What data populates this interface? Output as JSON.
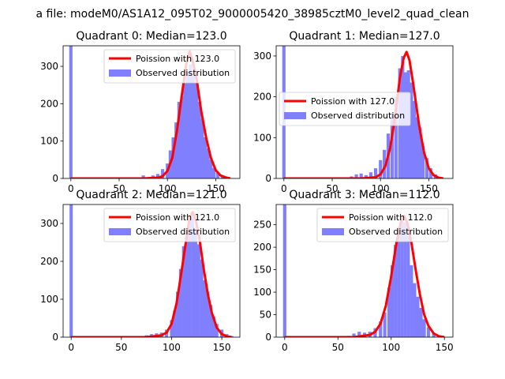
{
  "figure": {
    "suptitle": "a file: modeM0/AS1A12_095T02_9000005420_38985cztM0_level2_quad_clean"
  },
  "colors": {
    "observed": "#8080ff",
    "poisson": "#ff0000",
    "axes": "#000000",
    "background": "#ffffff"
  },
  "chart_data": [
    {
      "type": "bar",
      "title": "Quadrant 0: Median=123.0",
      "median": 123.0,
      "xlim": [
        -8,
        175
      ],
      "ylim": [
        0,
        355
      ],
      "xticks": [
        0,
        50,
        100,
        150
      ],
      "yticks": [
        0,
        100,
        200,
        300
      ],
      "legend_position": "upper right",
      "series": [
        {
          "name": "Poission with 123.0",
          "kind": "line",
          "x": [
            0,
            75,
            90,
            95,
            100,
            105,
            110,
            115,
            120,
            123,
            126,
            130,
            135,
            140,
            145,
            150,
            155,
            160,
            165
          ],
          "y": [
            0,
            0,
            2,
            6,
            20,
            55,
            130,
            225,
            315,
            340,
            315,
            270,
            180,
            110,
            55,
            22,
            8,
            3,
            0
          ]
        },
        {
          "name": "Observed distribution",
          "kind": "bars",
          "bin_width": 3.4,
          "x": [
            0,
            75,
            80,
            85,
            90,
            95,
            100,
            103,
            106,
            109,
            112,
            115,
            118,
            121,
            124,
            127,
            130,
            133,
            136,
            139,
            142,
            145,
            148,
            152,
            157,
            162
          ],
          "values": [
            355,
            8,
            3,
            8,
            12,
            25,
            40,
            75,
            110,
            150,
            205,
            220,
            255,
            285,
            305,
            275,
            255,
            205,
            160,
            110,
            80,
            50,
            28,
            15,
            8,
            3
          ]
        }
      ]
    },
    {
      "type": "bar",
      "title": "Quadrant 1: Median=127.0",
      "median": 127.0,
      "xlim": [
        -8,
        175
      ],
      "ylim": [
        0,
        325
      ],
      "xticks": [
        0,
        50,
        100,
        150
      ],
      "yticks": [
        0,
        100,
        200,
        300
      ],
      "legend_position": "center left",
      "series": [
        {
          "name": "Poission with 127.0",
          "kind": "line",
          "x": [
            0,
            80,
            95,
            100,
            105,
            110,
            115,
            120,
            124,
            127,
            130,
            134,
            140,
            145,
            150,
            155,
            160,
            165
          ],
          "y": [
            0,
            0,
            3,
            10,
            30,
            75,
            150,
            245,
            295,
            310,
            290,
            230,
            130,
            65,
            25,
            8,
            2,
            0
          ]
        },
        {
          "name": "Observed distribution",
          "kind": "bars",
          "bin_width": 3.4,
          "x": [
            0,
            70,
            75,
            80,
            85,
            90,
            95,
            100,
            104,
            108,
            112,
            116,
            120,
            123,
            126,
            129,
            132,
            135,
            138,
            141,
            144,
            148,
            152,
            157,
            162
          ],
          "values": [
            325,
            5,
            10,
            12,
            8,
            15,
            25,
            45,
            70,
            110,
            160,
            200,
            270,
            300,
            260,
            265,
            235,
            190,
            150,
            125,
            80,
            50,
            25,
            10,
            3
          ]
        }
      ]
    },
    {
      "type": "bar",
      "title": "Quadrant 2: Median=121.0",
      "median": 121.0,
      "xlim": [
        -8,
        168
      ],
      "ylim": [
        0,
        350
      ],
      "xticks": [
        0,
        50,
        100,
        150
      ],
      "yticks": [
        0,
        100,
        200,
        300
      ],
      "legend_position": "upper right",
      "series": [
        {
          "name": "Poission with 121.0",
          "kind": "line",
          "x": [
            0,
            75,
            90,
            95,
            100,
            105,
            110,
            115,
            118,
            121,
            124,
            128,
            132,
            136,
            140,
            145,
            150,
            155,
            160
          ],
          "y": [
            0,
            0,
            5,
            12,
            35,
            90,
            175,
            265,
            315,
            330,
            310,
            255,
            180,
            115,
            65,
            25,
            8,
            2,
            0
          ]
        },
        {
          "name": "Observed distribution",
          "kind": "bars",
          "bin_width": 3.2,
          "x": [
            0,
            75,
            80,
            85,
            90,
            95,
            100,
            103,
            106,
            109,
            112,
            115,
            118,
            121,
            124,
            127,
            130,
            133,
            136,
            139,
            142,
            145,
            150,
            155,
            160
          ],
          "values": [
            350,
            5,
            8,
            10,
            12,
            20,
            45,
            70,
            120,
            180,
            240,
            265,
            310,
            320,
            285,
            245,
            205,
            150,
            120,
            85,
            55,
            35,
            20,
            8,
            3
          ]
        }
      ]
    },
    {
      "type": "bar",
      "title": "Quadrant 3: Median=112.0",
      "median": 112.0,
      "xlim": [
        -8,
        158
      ],
      "ylim": [
        0,
        295
      ],
      "xticks": [
        0,
        50,
        100,
        150
      ],
      "yticks": [
        0,
        50,
        100,
        150,
        200,
        250
      ],
      "legend_position": "upper right",
      "series": [
        {
          "name": "Poission with 112.0",
          "kind": "line",
          "x": [
            0,
            65,
            80,
            85,
            90,
            95,
            100,
            105,
            109,
            112,
            115,
            119,
            123,
            127,
            131,
            135,
            140,
            145,
            150
          ],
          "y": [
            0,
            0,
            5,
            12,
            30,
            70,
            135,
            210,
            255,
            270,
            255,
            210,
            150,
            95,
            50,
            25,
            8,
            2,
            0
          ]
        },
        {
          "name": "Observed distribution",
          "kind": "bars",
          "bin_width": 3.1,
          "x": [
            0,
            60,
            65,
            70,
            75,
            80,
            85,
            90,
            94,
            98,
            101,
            104,
            107,
            110,
            113,
            116,
            119,
            122,
            125,
            128,
            131,
            135,
            140,
            145
          ],
          "values": [
            295,
            3,
            8,
            12,
            10,
            12,
            20,
            35,
            55,
            110,
            160,
            205,
            245,
            260,
            255,
            225,
            160,
            120,
            90,
            65,
            40,
            22,
            10,
            3
          ]
        }
      ]
    }
  ]
}
